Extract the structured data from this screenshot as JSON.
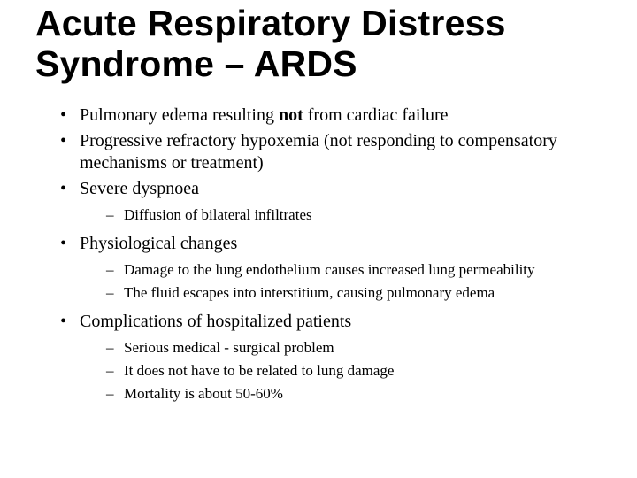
{
  "colors": {
    "background": "#ffffff",
    "text": "#000000"
  },
  "title": "Acute Respiratory Distress Syndrome – ARDS",
  "b1_pre": "Pulmonary edema resulting ",
  "b1_bold": "not",
  "b1_post": " from cardiac failure",
  "b2": "Progressive refractory hypoxemia (not responding to compensatory mechanisms or treatment)",
  "b3": "Severe dyspnoea",
  "b3_s1": "Diffusion of bilateral infiltrates",
  "b4": "Physiological changes",
  "b4_s1": "Damage to the lung endothelium causes increased lung permeability",
  "b4_s2": "The fluid escapes into interstitium, causing pulmonary edema",
  "b5": "Complications of hospitalized patients",
  "b5_s1": "Serious medical - surgical problem",
  "b5_s2": "It does not have to be related to lung damage",
  "b5_s3": "Mortality is about 50-60%"
}
